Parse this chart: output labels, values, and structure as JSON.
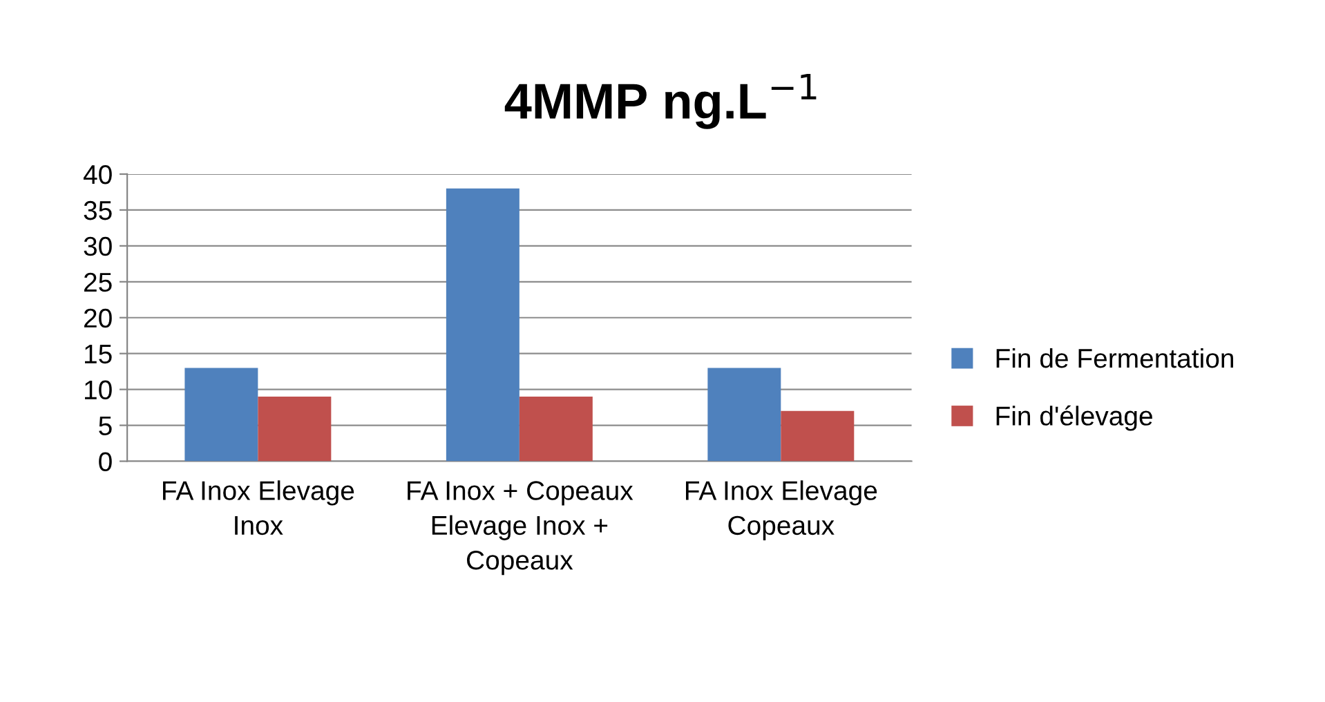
{
  "chart_data": {
    "type": "bar",
    "title": "4MMP ng.L$^{−1}$",
    "categories": [
      "FA Inox Elevage Inox",
      "FA Inox + Copeaux Elevage Inox + Copeaux",
      "FA Inox Elevage Copeaux"
    ],
    "series": [
      {
        "name": "Fin de Fermentation",
        "color": "#4f81bd",
        "values": [
          13,
          38,
          13
        ]
      },
      {
        "name": "Fin d'élevage",
        "color": "#c0504d",
        "values": [
          9,
          9,
          7
        ]
      }
    ],
    "ylim": [
      0,
      40
    ],
    "yticks": [
      0,
      5,
      10,
      15,
      20,
      25,
      30,
      35,
      40
    ],
    "grid": "y",
    "legend": "right"
  }
}
